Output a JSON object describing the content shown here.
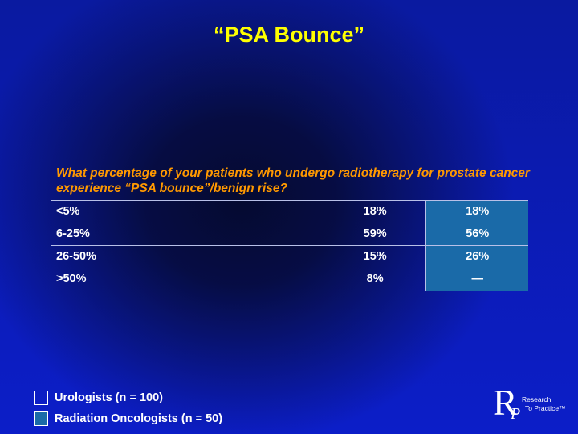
{
  "slide": {
    "title": "“PSA Bounce”",
    "question": "What percentage of your patients who undergo radiotherapy for prostate cancer experience “PSA bounce”/benign rise?"
  },
  "table": {
    "rows": [
      {
        "label": "<5%",
        "urologists": "18%",
        "radiation_oncologists": "18%"
      },
      {
        "label": "6-25%",
        "urologists": "59%",
        "radiation_oncologists": "56%"
      },
      {
        "label": "26-50%",
        "urologists": "15%",
        "radiation_oncologists": "26%"
      },
      {
        "label": ">50%",
        "urologists": "8%",
        "radiation_oncologists": "—"
      }
    ]
  },
  "legend": {
    "urologists": "Urologists  (n = 100)",
    "radiation_oncologists": "Radiation Oncologists  (n = 50)"
  },
  "logo": {
    "letter_r": "R",
    "letter_p": "P",
    "line1": "Research",
    "line2": "To Practice™"
  },
  "colors": {
    "title": "#ffff00",
    "question": "#ff9900",
    "radiation_column": "#1a6aa8"
  }
}
